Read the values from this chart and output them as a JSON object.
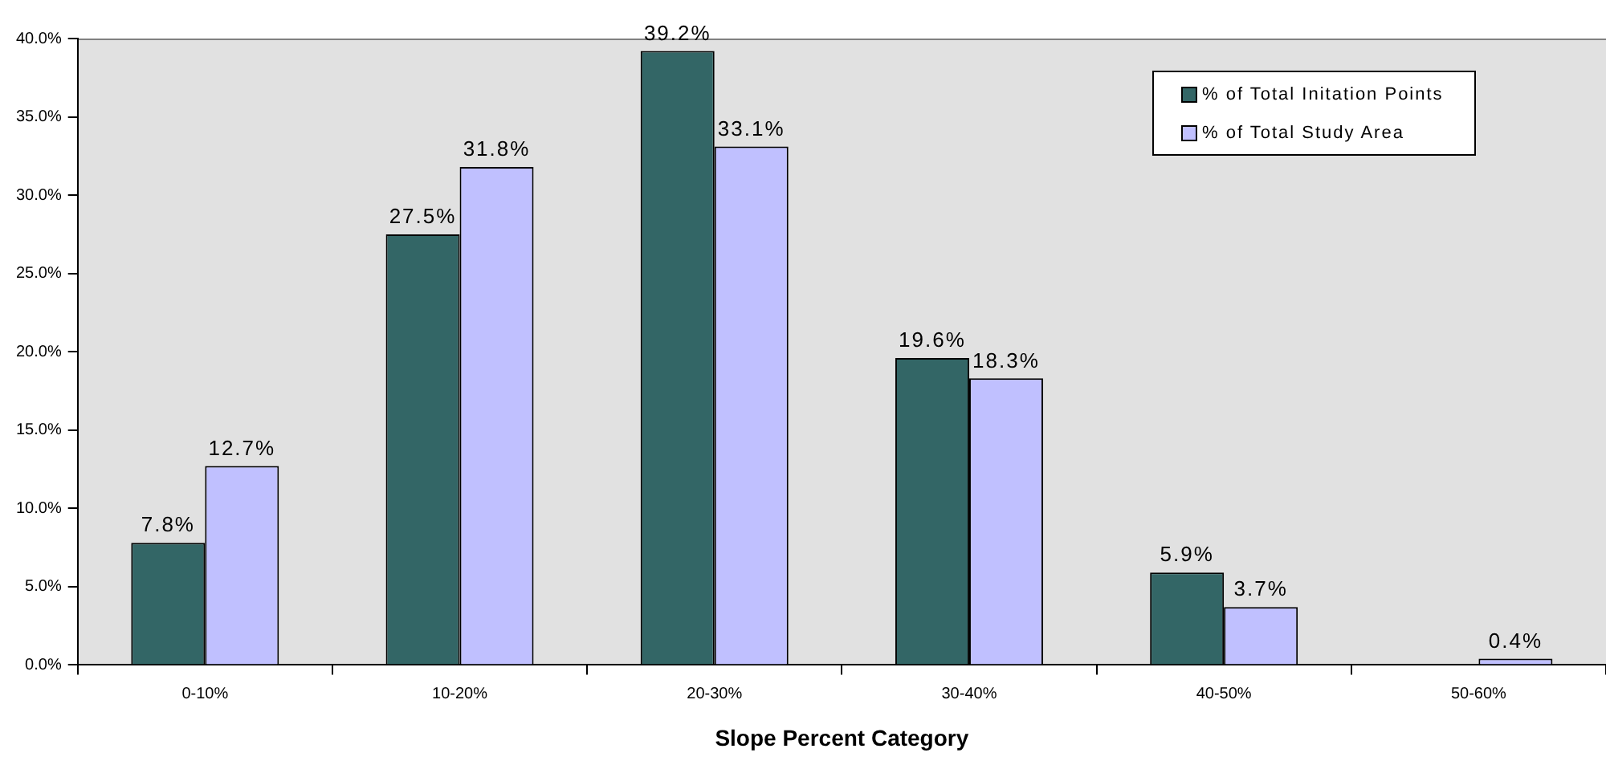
{
  "chart_data": {
    "type": "bar",
    "xlabel": "Slope Percent Category",
    "categories": [
      "0-10%",
      "10-20%",
      "20-30%",
      "30-40%",
      "40-50%",
      "50-60%"
    ],
    "series": [
      {
        "name": "% of Total Initation Points",
        "color": "#336666",
        "values": [
          7.8,
          27.5,
          39.2,
          19.6,
          5.9,
          null
        ],
        "value_labels": [
          "7.8%",
          "27.5%",
          "39.2%",
          "19.6%",
          "5.9%",
          null
        ]
      },
      {
        "name": "% of Total Study Area",
        "color": "#c0c0ff",
        "values": [
          12.7,
          31.8,
          33.1,
          18.3,
          3.7,
          0.4
        ],
        "value_labels": [
          "12.7%",
          "31.8%",
          "33.1%",
          "18.3%",
          "3.7%",
          "0.4%"
        ]
      }
    ],
    "ylim": [
      0,
      40
    ],
    "yticks": [
      {
        "value": 0,
        "label": "0.0%"
      },
      {
        "value": 5,
        "label": "5.0%"
      },
      {
        "value": 10,
        "label": "10.0%"
      },
      {
        "value": 15,
        "label": "15.0%"
      },
      {
        "value": 20,
        "label": "20.0%"
      },
      {
        "value": 25,
        "label": "25.0%"
      },
      {
        "value": 30,
        "label": "30.0%"
      },
      {
        "value": 35,
        "label": "35.0%"
      },
      {
        "value": 40,
        "label": "40.0%"
      }
    ],
    "grid": false,
    "legend": "top right"
  }
}
